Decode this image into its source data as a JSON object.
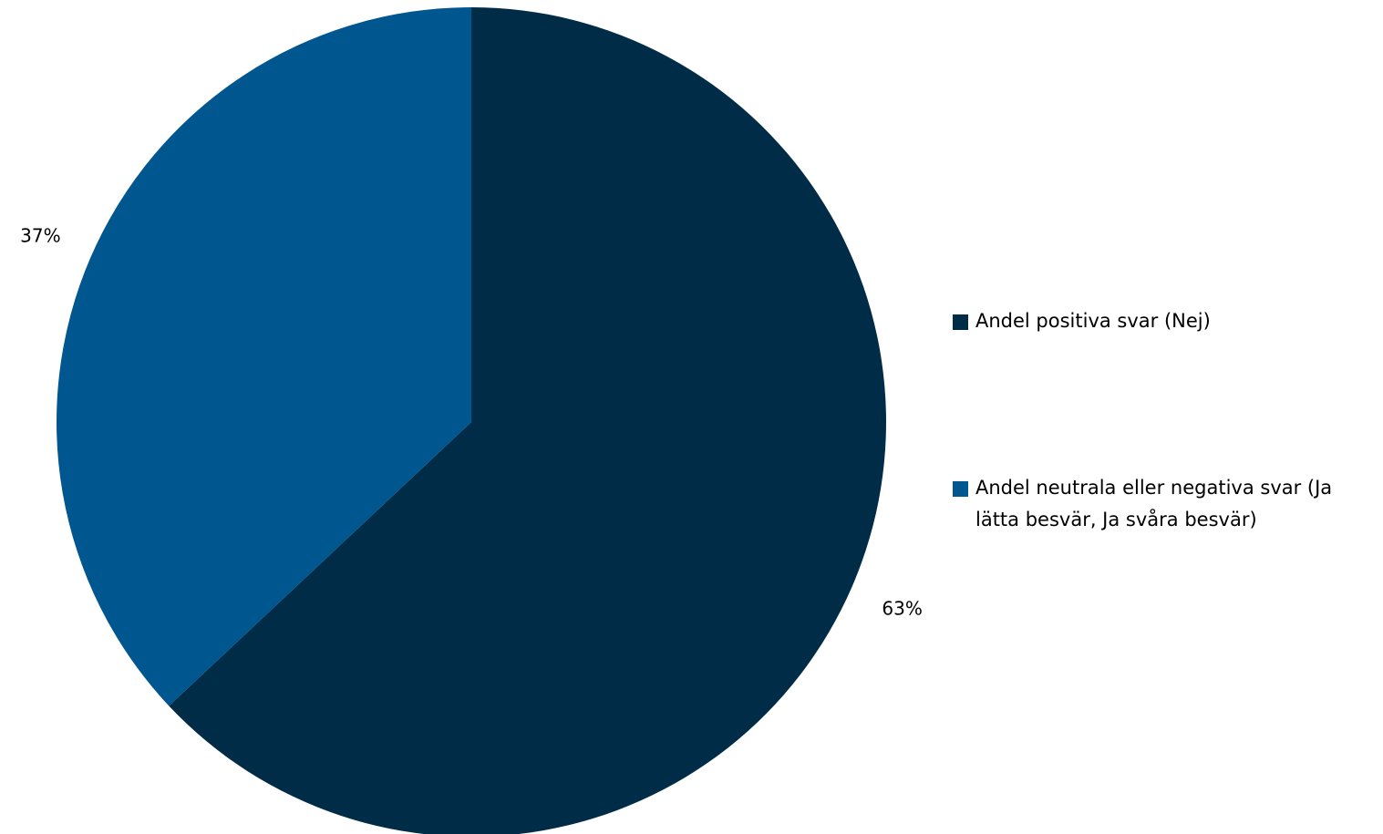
{
  "chart_data": {
    "type": "pie",
    "slices": [
      {
        "name": "Andel positiva svar (Nej)",
        "value": 63,
        "label": "63%",
        "color": "#012c47"
      },
      {
        "name": "Andel neutrala eller negativa svar (Ja lätta besvär, Ja svåra besvär)",
        "value": 37,
        "label": "37%",
        "color": "#00568f"
      }
    ],
    "start_angle_deg": 0,
    "direction": "clockwise",
    "legend_position": "right",
    "data_labels": "outside"
  }
}
